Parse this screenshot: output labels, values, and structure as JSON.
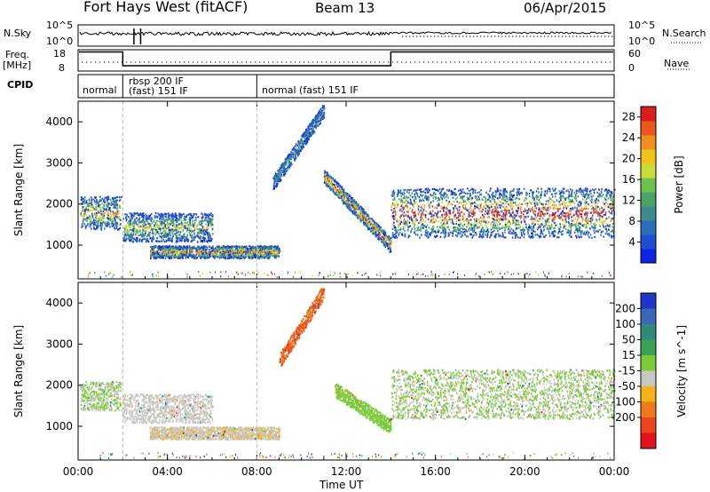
{
  "header": {
    "station": "Fort Hays West (fitACF)",
    "beam": "Beam 13",
    "date": "06/Apr/2015"
  },
  "left_labels": {
    "nsky": "N.Sky",
    "freq": "Freq.",
    "freq_unit": "[MHz]",
    "cpid": "CPID"
  },
  "right_labels": {
    "nsearch": "N.Search",
    "nave": "Nave"
  },
  "noise_ticks_left": [
    "10^5",
    "10^0"
  ],
  "noise_ticks_right": [
    "10^5",
    "10^0"
  ],
  "freq_ticks": [
    "18",
    "8"
  ],
  "nave_ticks": [
    "60",
    "0"
  ],
  "cpid_segments": [
    {
      "line1": "normal",
      "line2": ""
    },
    {
      "line1": "rbsp 200 IF",
      "line2": "(fast) 151 IF"
    },
    {
      "line1": "normal (fast) 151 IF",
      "line2": ""
    }
  ],
  "chart_data": [
    {
      "type": "heatmap",
      "title": "Power",
      "ylabel": "Slant Range [km]",
      "xlabel": "",
      "x_ticks": [
        "00:00",
        "04:00",
        "08:00",
        "12:00",
        "16:00",
        "20:00",
        "00:00"
      ],
      "y_ticks": [
        "1000",
        "2000",
        "3000",
        "4000"
      ],
      "ylim": [
        180,
        4500
      ],
      "colorbar": {
        "label": "Power [dB]",
        "ticks": [
          "4",
          "8",
          "12",
          "16",
          "20",
          "24",
          "28"
        ],
        "range": [
          0,
          30
        ],
        "colors": [
          "#0b24e6",
          "#1d4fd0",
          "#2d6bbd",
          "#3f8a8a",
          "#4da365",
          "#6ec24b",
          "#c9dc39",
          "#f2c21c",
          "#f0901d",
          "#e9591b",
          "#dd1d1c"
        ]
      },
      "features": [
        {
          "name": "echo band 00-02 UT",
          "t_start_h": 0.1,
          "t_end_h": 1.9,
          "range_km": [
            1400,
            2200
          ],
          "peak_db": 20
        },
        {
          "name": "echo band 02-06 UT",
          "t_start_h": 2.0,
          "t_end_h": 6.0,
          "range_km": [
            1100,
            1800
          ],
          "peak_db": 16
        },
        {
          "name": "low band 03-09 UT",
          "t_start_h": 3.2,
          "t_end_h": 9.0,
          "range_km": [
            700,
            1000
          ],
          "peak_db": 22
        },
        {
          "name": "rising arc 09-11 UT",
          "t_start_h": 8.7,
          "t_end_h": 11.0,
          "range_km": [
            2500,
            4300
          ],
          "peak_db": 10
        },
        {
          "name": "descending arc 11-14 UT",
          "t_start_h": 11.0,
          "t_end_h": 14.0,
          "range_km": [
            1000,
            2700
          ],
          "peak_db": 24
        },
        {
          "name": "evening band 14-24 UT",
          "t_start_h": 14.0,
          "t_end_h": 24.0,
          "range_km": [
            1200,
            2400
          ],
          "peak_db": 26
        }
      ]
    },
    {
      "type": "heatmap",
      "title": "Velocity",
      "ylabel": "Slant Range [km]",
      "xlabel": "Time UT",
      "x_ticks": [
        "00:00",
        "04:00",
        "08:00",
        "12:00",
        "16:00",
        "20:00",
        "00:00"
      ],
      "y_ticks": [
        "1000",
        "2000",
        "3000",
        "4000"
      ],
      "ylim": [
        180,
        4500
      ],
      "colorbar": {
        "label": "Velocity [m s^-1]",
        "ticks": [
          "200",
          "100",
          "50",
          "15",
          "-15",
          "-50",
          "-100",
          "-200"
        ],
        "range": [
          -250,
          250
        ],
        "colors": [
          "#2036c9",
          "#3a67b9",
          "#2e8a7a",
          "#3aa35a",
          "#7ccc3a",
          "#c8c8c0",
          "#f6b318",
          "#f07a1b",
          "#e9461c",
          "#e0151c"
        ]
      },
      "features": [
        {
          "name": "ground scatter 00-02 UT",
          "t_start_h": 0.1,
          "t_end_h": 1.9,
          "range_km": [
            1400,
            2100
          ],
          "velocity": 0
        },
        {
          "name": "mixed band 02-06 UT",
          "t_start_h": 2.0,
          "t_end_h": 6.0,
          "range_km": [
            1100,
            1800
          ],
          "velocity": -30
        },
        {
          "name": "low band 03-09 UT",
          "t_start_h": 3.2,
          "t_end_h": 9.0,
          "range_km": [
            700,
            1000
          ],
          "velocity": -40
        },
        {
          "name": "rising arc 09-11 UT",
          "t_start_h": 9.0,
          "t_end_h": 11.0,
          "range_km": [
            2600,
            4300
          ],
          "velocity": -150
        },
        {
          "name": "descending arc 11-14 UT",
          "t_start_h": 11.5,
          "t_end_h": 14.0,
          "range_km": [
            1000,
            1900
          ],
          "velocity": 30
        },
        {
          "name": "evening ground scatter 14-24 UT",
          "t_start_h": 14.0,
          "t_end_h": 24.0,
          "range_km": [
            1200,
            2400
          ],
          "velocity": 0
        }
      ]
    }
  ]
}
